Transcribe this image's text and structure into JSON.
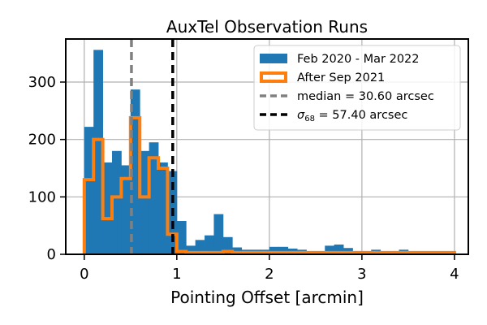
{
  "chart_data": {
    "type": "bar",
    "title": "AuxTel Observation Runs",
    "xlabel": "Pointing Offset [arcmin]",
    "ylabel": "",
    "xlim": [
      -0.2,
      4.15
    ],
    "ylim": [
      0,
      375
    ],
    "xticks": [
      0,
      1,
      2,
      3,
      4
    ],
    "yticks": [
      0,
      100,
      200,
      300
    ],
    "grid": true,
    "legend_position": "top-right",
    "bin_width": 0.1,
    "series": [
      {
        "name": "Feb 2020 - Mar 2022",
        "kind": "bars",
        "color": "#1f77b4",
        "x_start": [
          0.0,
          0.1,
          0.2,
          0.3,
          0.4,
          0.5,
          0.6,
          0.7,
          0.8,
          0.9,
          1.0,
          1.1,
          1.2,
          1.3,
          1.4,
          1.5,
          1.6,
          1.7,
          1.8,
          1.9,
          2.0,
          2.1,
          2.2,
          2.3,
          2.4,
          2.5,
          2.6,
          2.7,
          2.8,
          2.9,
          3.0,
          3.1,
          3.2,
          3.3,
          3.4,
          3.5,
          3.6,
          3.7,
          3.8,
          3.9
        ],
        "values": [
          222,
          356,
          160,
          180,
          155,
          287,
          180,
          195,
          160,
          145,
          58,
          15,
          25,
          33,
          70,
          30,
          12,
          8,
          8,
          8,
          13,
          13,
          10,
          8,
          3,
          3,
          15,
          17,
          11,
          3,
          3,
          8,
          5,
          3,
          8,
          3,
          3,
          3,
          3,
          3
        ]
      },
      {
        "name": "After Sep 2021",
        "kind": "step",
        "color": "#ff7f0e",
        "x_start": [
          0.0,
          0.1,
          0.2,
          0.3,
          0.4,
          0.5,
          0.6,
          0.7,
          0.8,
          0.9,
          1.0,
          1.1,
          1.2,
          1.3,
          1.4,
          1.5,
          1.6,
          1.7,
          1.8,
          1.9,
          2.0,
          2.1,
          2.2,
          2.3,
          2.4,
          2.5,
          2.6,
          2.7,
          2.8,
          2.9,
          3.0,
          3.1,
          3.2,
          3.3,
          3.4,
          3.5,
          3.6,
          3.7,
          3.8,
          3.9
        ],
        "values": [
          130,
          200,
          62,
          100,
          132,
          238,
          100,
          168,
          150,
          35,
          5,
          3,
          3,
          3,
          3,
          5,
          3,
          3,
          3,
          3,
          3,
          3,
          3,
          3,
          3,
          3,
          3,
          3,
          3,
          3,
          3,
          3,
          3,
          3,
          3,
          3,
          3,
          3,
          3,
          3
        ]
      }
    ],
    "vlines": [
      {
        "name": "median = 30.60 arcsec",
        "x": 0.51,
        "color": "#808080",
        "style": "dashed"
      },
      {
        "name": "σ68 = 57.40 arcsec",
        "label_prefix": "σ",
        "label_sub": "68",
        "label_suffix": " = 57.40 arcsec",
        "x": 0.956,
        "color": "#000000",
        "style": "dashed"
      }
    ]
  }
}
